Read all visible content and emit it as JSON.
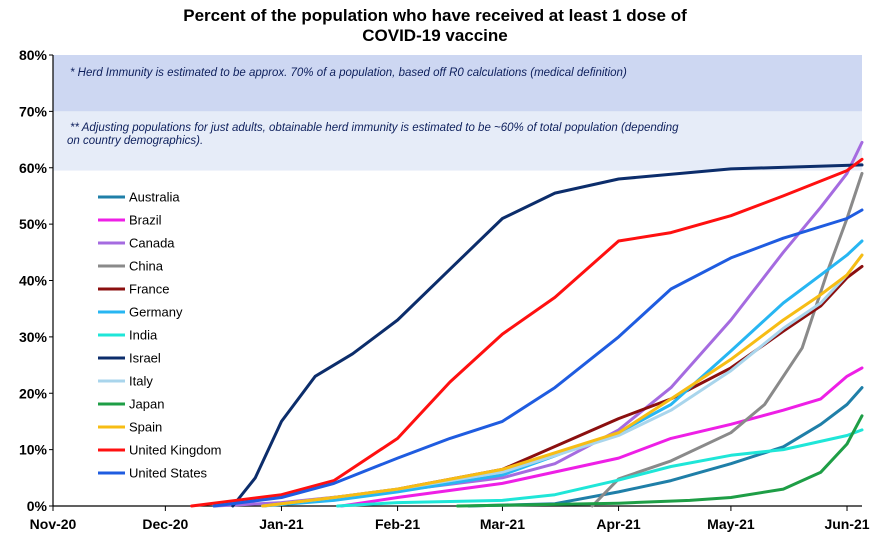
{
  "chart_data": {
    "type": "line",
    "title_lines": [
      "Percent of the population who have received at least 1 dose of",
      "COVID-19 vaccine"
    ],
    "xlabel": "",
    "ylabel": "",
    "x_ticks": [
      "Nov-20",
      "Dec-20",
      "Jan-21",
      "Feb-21",
      "Mar-21",
      "Apr-21",
      "May-21",
      "Jun-21"
    ],
    "x_range": [
      "2020-11-01",
      "2021-06-05"
    ],
    "y_ticks": [
      "0%",
      "10%",
      "20%",
      "30%",
      "40%",
      "50%",
      "60%",
      "70%",
      "80%"
    ],
    "ylim": [
      0,
      80
    ],
    "grid": false,
    "legend_position": "left",
    "bands": [
      {
        "from": 70,
        "to": 80,
        "color": "#cdd7f2",
        "note": "* Herd Immunity is estimated to be approx. 70% of a population, based off R0 calculations (medical definition)"
      },
      {
        "from": 59.5,
        "to": 70,
        "color": "#e6ecf8",
        "note": "** Adjusting populations for just adults, obtainable herd immunity is estimated to be ~60% of total population (depending on country demographics)."
      }
    ],
    "series": [
      {
        "name": "Australia",
        "color": "#1f7fa8",
        "points": [
          [
            "2021-02-20",
            0
          ],
          [
            "2021-03-15",
            0.4
          ],
          [
            "2021-04-01",
            2.5
          ],
          [
            "2021-04-15",
            4.5
          ],
          [
            "2021-05-01",
            7.5
          ],
          [
            "2021-05-15",
            10.5
          ],
          [
            "2021-05-25",
            14.5
          ],
          [
            "2021-06-01",
            18
          ],
          [
            "2021-06-05",
            21
          ]
        ]
      },
      {
        "name": "Brazil",
        "color": "#ee1fe6",
        "points": [
          [
            "2021-01-17",
            0
          ],
          [
            "2021-02-01",
            1.5
          ],
          [
            "2021-03-01",
            4
          ],
          [
            "2021-04-01",
            8.5
          ],
          [
            "2021-04-15",
            12
          ],
          [
            "2021-05-01",
            14.5
          ],
          [
            "2021-05-15",
            17
          ],
          [
            "2021-05-25",
            19
          ],
          [
            "2021-06-01",
            23
          ],
          [
            "2021-06-05",
            24.5
          ]
        ]
      },
      {
        "name": "Canada",
        "color": "#a56be0",
        "points": [
          [
            "2020-12-14",
            0
          ],
          [
            "2021-01-01",
            0.6
          ],
          [
            "2021-02-01",
            2.7
          ],
          [
            "2021-03-01",
            5
          ],
          [
            "2021-03-15",
            7.5
          ],
          [
            "2021-04-01",
            13.5
          ],
          [
            "2021-04-15",
            21
          ],
          [
            "2021-05-01",
            33
          ],
          [
            "2021-05-15",
            45
          ],
          [
            "2021-05-25",
            53
          ],
          [
            "2021-06-01",
            59
          ],
          [
            "2021-06-05",
            64.5
          ]
        ]
      },
      {
        "name": "China",
        "color": "#8a8a8a",
        "points": [
          [
            "2021-03-25",
            0
          ],
          [
            "2021-04-01",
            4.8
          ],
          [
            "2021-04-15",
            8
          ],
          [
            "2021-05-01",
            13
          ],
          [
            "2021-05-10",
            18
          ],
          [
            "2021-05-20",
            28
          ],
          [
            "2021-05-27",
            42
          ],
          [
            "2021-06-01",
            51
          ],
          [
            "2021-06-05",
            59
          ]
        ]
      },
      {
        "name": "France",
        "color": "#8b0f0f",
        "points": [
          [
            "2020-12-27",
            0
          ],
          [
            "2021-01-15",
            1.5
          ],
          [
            "2021-02-01",
            3
          ],
          [
            "2021-03-01",
            6.5
          ],
          [
            "2021-04-01",
            15.5
          ],
          [
            "2021-04-15",
            19
          ],
          [
            "2021-05-01",
            24.5
          ],
          [
            "2021-05-15",
            31
          ],
          [
            "2021-05-25",
            35.5
          ],
          [
            "2021-06-01",
            40.5
          ],
          [
            "2021-06-05",
            42.5
          ]
        ]
      },
      {
        "name": "Germany",
        "color": "#27b6f2",
        "points": [
          [
            "2020-12-27",
            0
          ],
          [
            "2021-01-15",
            1
          ],
          [
            "2021-02-01",
            2.5
          ],
          [
            "2021-03-01",
            5.5
          ],
          [
            "2021-04-01",
            13
          ],
          [
            "2021-04-15",
            18
          ],
          [
            "2021-05-01",
            27.5
          ],
          [
            "2021-05-15",
            36
          ],
          [
            "2021-05-25",
            41
          ],
          [
            "2021-06-01",
            44.5
          ],
          [
            "2021-06-05",
            47
          ]
        ]
      },
      {
        "name": "India",
        "color": "#1fe6d8",
        "points": [
          [
            "2021-01-16",
            0
          ],
          [
            "2021-02-01",
            0.6
          ],
          [
            "2021-03-01",
            1
          ],
          [
            "2021-03-15",
            2
          ],
          [
            "2021-04-01",
            4.6
          ],
          [
            "2021-04-15",
            7
          ],
          [
            "2021-05-01",
            9
          ],
          [
            "2021-05-15",
            10
          ],
          [
            "2021-06-01",
            12.5
          ],
          [
            "2021-06-05",
            13.5
          ]
        ]
      },
      {
        "name": "Israel",
        "color": "#0c2d6b",
        "points": [
          [
            "2020-12-19",
            0
          ],
          [
            "2020-12-25",
            5
          ],
          [
            "2021-01-01",
            15
          ],
          [
            "2021-01-10",
            23
          ],
          [
            "2021-01-20",
            27
          ],
          [
            "2021-02-01",
            33
          ],
          [
            "2021-02-15",
            42
          ],
          [
            "2021-03-01",
            51
          ],
          [
            "2021-03-15",
            55.5
          ],
          [
            "2021-04-01",
            58
          ],
          [
            "2021-05-01",
            59.8
          ],
          [
            "2021-06-05",
            60.5
          ]
        ]
      },
      {
        "name": "Italy",
        "color": "#a9d5ec",
        "points": [
          [
            "2020-12-27",
            0
          ],
          [
            "2021-01-15",
            1.5
          ],
          [
            "2021-02-01",
            3
          ],
          [
            "2021-03-01",
            6
          ],
          [
            "2021-04-01",
            12.5
          ],
          [
            "2021-04-15",
            17
          ],
          [
            "2021-05-01",
            24
          ],
          [
            "2021-05-15",
            31.5
          ],
          [
            "2021-05-25",
            36
          ],
          [
            "2021-06-01",
            41
          ],
          [
            "2021-06-05",
            44.5
          ]
        ]
      },
      {
        "name": "Japan",
        "color": "#1e9e46",
        "points": [
          [
            "2021-02-17",
            0
          ],
          [
            "2021-04-01",
            0.5
          ],
          [
            "2021-04-20",
            1
          ],
          [
            "2021-05-01",
            1.5
          ],
          [
            "2021-05-15",
            3
          ],
          [
            "2021-05-25",
            6
          ],
          [
            "2021-06-01",
            11
          ],
          [
            "2021-06-05",
            16
          ]
        ]
      },
      {
        "name": "Spain",
        "color": "#f7bd14",
        "points": [
          [
            "2020-12-27",
            0
          ],
          [
            "2021-01-15",
            1.5
          ],
          [
            "2021-02-01",
            3
          ],
          [
            "2021-03-01",
            6.5
          ],
          [
            "2021-04-01",
            13
          ],
          [
            "2021-04-15",
            19
          ],
          [
            "2021-05-01",
            26
          ],
          [
            "2021-05-15",
            33
          ],
          [
            "2021-05-25",
            37.5
          ],
          [
            "2021-06-01",
            41
          ],
          [
            "2021-06-05",
            44.5
          ]
        ]
      },
      {
        "name": "United Kingdom",
        "color": "#ff1010",
        "points": [
          [
            "2020-12-08",
            0
          ],
          [
            "2020-12-20",
            1
          ],
          [
            "2021-01-01",
            2
          ],
          [
            "2021-01-15",
            4.5
          ],
          [
            "2021-02-01",
            12
          ],
          [
            "2021-02-15",
            22
          ],
          [
            "2021-03-01",
            30.5
          ],
          [
            "2021-03-15",
            37
          ],
          [
            "2021-04-01",
            47
          ],
          [
            "2021-04-15",
            48.5
          ],
          [
            "2021-05-01",
            51.5
          ],
          [
            "2021-05-15",
            55
          ],
          [
            "2021-06-01",
            59.5
          ],
          [
            "2021-06-05",
            61.5
          ]
        ]
      },
      {
        "name": "United States",
        "color": "#1f5ce0",
        "points": [
          [
            "2020-12-14",
            0
          ],
          [
            "2021-01-01",
            1.5
          ],
          [
            "2021-01-15",
            4
          ],
          [
            "2021-02-01",
            8.5
          ],
          [
            "2021-02-15",
            12
          ],
          [
            "2021-03-01",
            15
          ],
          [
            "2021-03-15",
            21
          ],
          [
            "2021-04-01",
            30
          ],
          [
            "2021-04-15",
            38.5
          ],
          [
            "2021-05-01",
            44
          ],
          [
            "2021-05-15",
            47.5
          ],
          [
            "2021-06-01",
            51
          ],
          [
            "2021-06-05",
            52.5
          ]
        ]
      }
    ]
  }
}
